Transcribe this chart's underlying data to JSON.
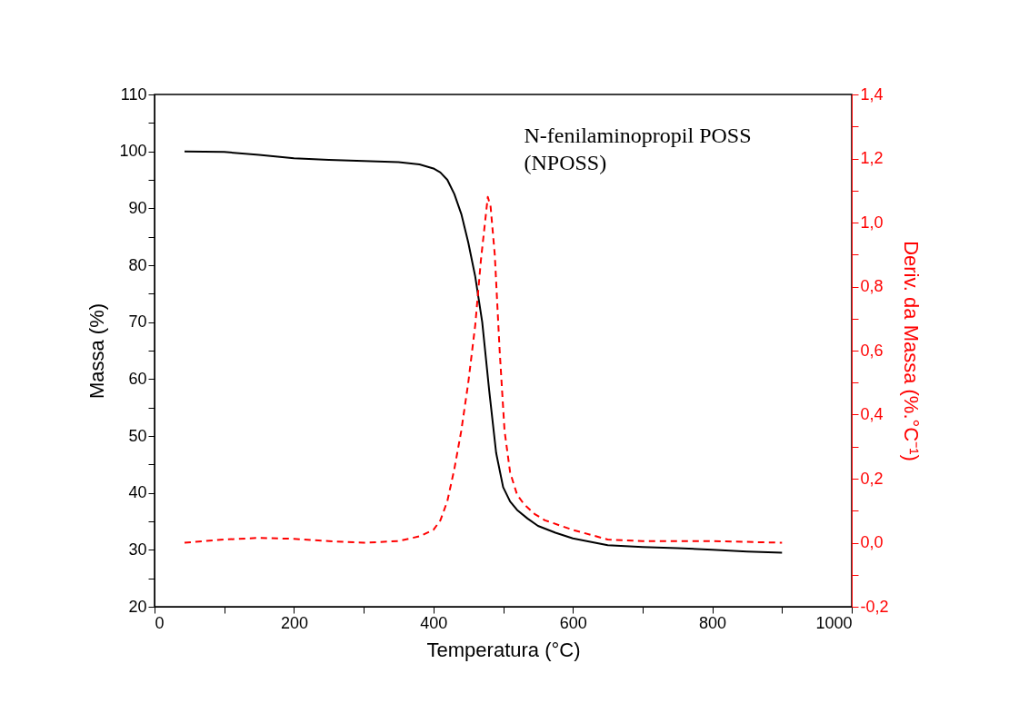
{
  "chart_data": {
    "type": "line",
    "xlabel": "Temperatura (°C)",
    "ylabel": "Massa (%)",
    "y2label": "Deriv. da Massa (%.°C⁻¹)",
    "xlim": [
      0,
      1000
    ],
    "ylim": [
      20,
      110
    ],
    "y2lim": [
      -0.2,
      1.4
    ],
    "xticks": [
      0,
      {
        "value": 100,
        "label": null
      },
      200,
      {
        "value": 300,
        "label": null
      },
      400,
      {
        "value": 500,
        "label": null
      },
      600,
      {
        "value": 700,
        "label": null
      },
      800,
      {
        "value": 900,
        "label": null
      },
      1000
    ],
    "yticks": [
      20,
      {
        "value": 25,
        "label": null
      },
      30,
      {
        "value": 35,
        "label": null
      },
      40,
      {
        "value": 45,
        "label": null
      },
      50,
      {
        "value": 55,
        "label": null
      },
      60,
      {
        "value": 65,
        "label": null
      },
      70,
      {
        "value": 75,
        "label": null
      },
      80,
      {
        "value": 85,
        "label": null
      },
      90,
      {
        "value": 95,
        "label": null
      },
      100,
      {
        "value": 105,
        "label": null
      },
      110
    ],
    "y2ticks": [
      {
        "value": -0.2,
        "label": "-0,2"
      },
      {
        "value": -0.1,
        "label": null
      },
      {
        "value": 0,
        "label": "0,0"
      },
      {
        "value": 0.1,
        "label": null
      },
      {
        "value": 0.2,
        "label": "0,2"
      },
      {
        "value": 0.3,
        "label": null
      },
      {
        "value": 0.4,
        "label": "0,4"
      },
      {
        "value": 0.5,
        "label": null
      },
      {
        "value": 0.6,
        "label": "0,6"
      },
      {
        "value": 0.7,
        "label": null
      },
      {
        "value": 0.8,
        "label": "0,8"
      },
      {
        "value": 0.9,
        "label": null
      },
      {
        "value": 1.0,
        "label": "1,0"
      },
      {
        "value": 1.1,
        "label": null
      },
      {
        "value": 1.2,
        "label": "1,2"
      },
      {
        "value": 1.3,
        "label": null
      },
      {
        "value": 1.4,
        "label": "1,4"
      }
    ],
    "grid": false,
    "marker": "none",
    "annotations": [
      "N-fenilaminopropil POSS\n(NPOSS)"
    ],
    "series": [
      {
        "color": "#000000",
        "line_style": "solid",
        "x": [
          43,
          100,
          150,
          200,
          250,
          300,
          350,
          380,
          400,
          410,
          420,
          430,
          440,
          450,
          460,
          470,
          480,
          490,
          500,
          510,
          520,
          535,
          550,
          575,
          600,
          650,
          700,
          750,
          800,
          850,
          900
        ],
        "values": [
          100,
          99.9,
          99.4,
          98.8,
          98.5,
          98.3,
          98.1,
          97.7,
          97,
          96.3,
          95,
          92.5,
          89,
          84,
          78,
          70,
          58,
          47,
          41,
          38.5,
          37,
          35.5,
          34.2,
          33,
          32,
          30.8,
          30.5,
          30.3,
          30,
          29.7,
          29.5
        ]
      },
      {
        "color": "#ff0000",
        "line_style": "dashed",
        "axis": "y2",
        "x": [
          43,
          100,
          150,
          200,
          250,
          300,
          350,
          380,
          400,
          410,
          420,
          430,
          440,
          450,
          460,
          468,
          474,
          478,
          482,
          488,
          495,
          502,
          510,
          520,
          530,
          545,
          560,
          600,
          650,
          700,
          800,
          900
        ],
        "values": [
          0,
          0.01,
          0.015,
          0.012,
          0.005,
          0,
          0.005,
          0.02,
          0.04,
          0.07,
          0.13,
          0.23,
          0.35,
          0.5,
          0.68,
          0.88,
          1.0,
          1.08,
          1.05,
          0.9,
          0.6,
          0.35,
          0.22,
          0.15,
          0.12,
          0.09,
          0.07,
          0.04,
          0.01,
          0.005,
          0.005,
          0
        ]
      }
    ]
  }
}
